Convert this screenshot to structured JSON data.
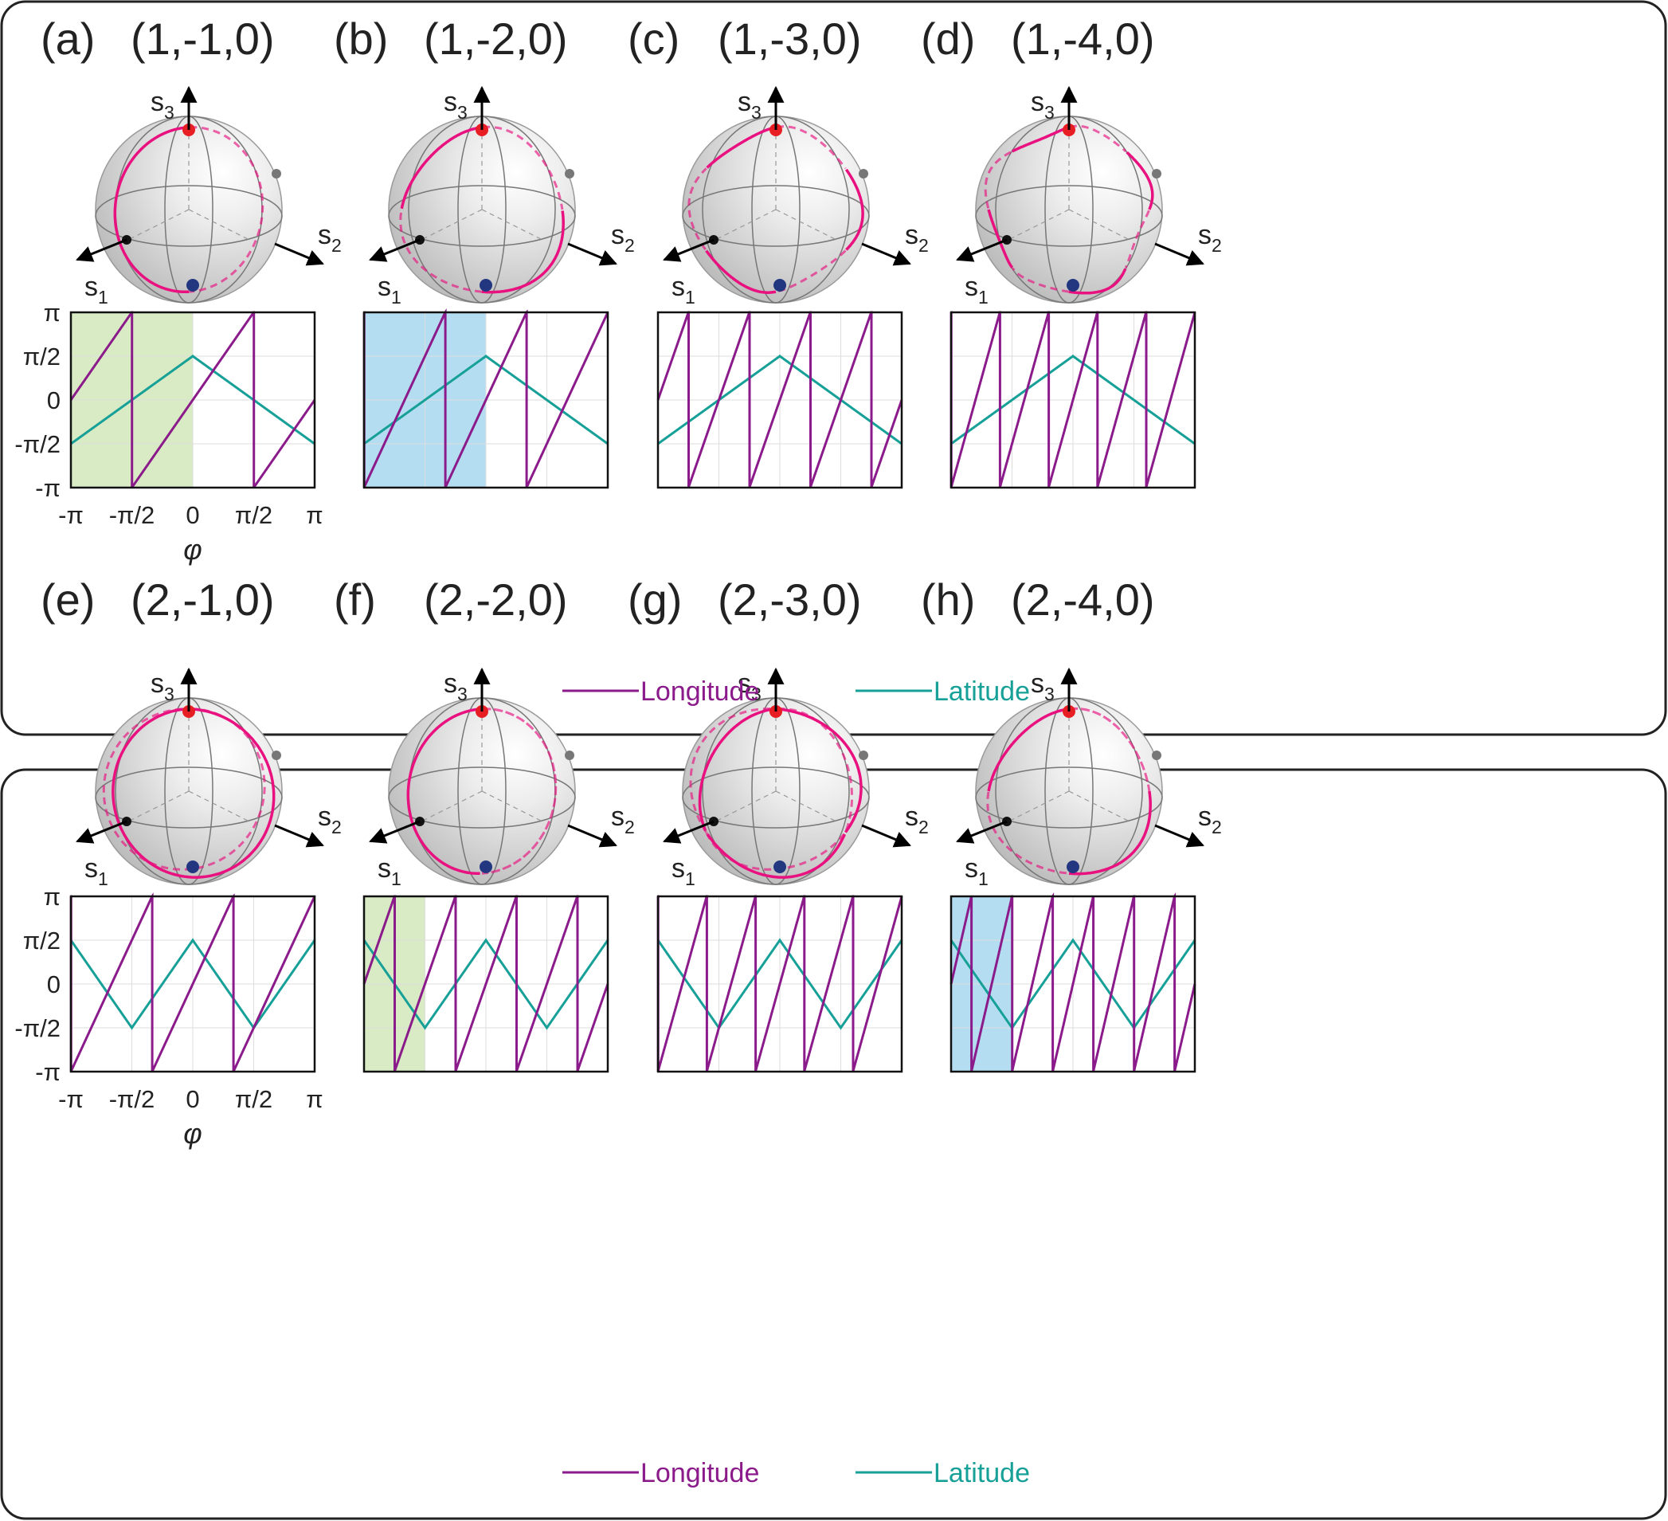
{
  "colors": {
    "longitude": "#8b1b8b",
    "latitude": "#17a097",
    "trajectory": "#e8117f",
    "north_pole": "#e81e25",
    "south_pole": "#233680",
    "green_shade": "#d9ebc4",
    "blue_shade": "#b4ddf2"
  },
  "axes": {
    "s1": "s",
    "s1_sub": "1",
    "s2": "s",
    "s2_sub": "2",
    "s3": "s",
    "s3_sub": "3"
  },
  "ticks": {
    "y": [
      "π",
      "π/2",
      "0",
      "-π/2",
      "-π"
    ],
    "x": [
      "-π",
      "-π/2",
      "0",
      "π/2",
      "π"
    ],
    "xlabel": "φ"
  },
  "legend": {
    "longitude": "Longitude",
    "latitude": "Latitude"
  },
  "groups": [
    {
      "panels": [
        {
          "label": "(a)",
          "title": "(1,-1,0)"
        },
        {
          "label": "(b)",
          "title": "(1,-2,0)"
        },
        {
          "label": "(c)",
          "title": "(1,-3,0)"
        },
        {
          "label": "(d)",
          "title": "(1,-4,0)"
        }
      ]
    },
    {
      "panels": [
        {
          "label": "(e)",
          "title": "(2,-1,0)"
        },
        {
          "label": "(f)",
          "title": "(2,-2,0)"
        },
        {
          "label": "(g)",
          "title": "(2,-3,0)"
        },
        {
          "label": "(h)",
          "title": "(2,-4,0)"
        }
      ]
    }
  ],
  "chart_data": [
    {
      "type": "line",
      "panel": "(a)",
      "x_range": [
        "-π",
        "π"
      ],
      "y_range": [
        "-π",
        "π"
      ],
      "p": 1,
      "q": -1,
      "shaded": "green",
      "shaded_x": [
        "-π",
        "0"
      ],
      "series": [
        {
          "name": "Longitude"
        },
        {
          "name": "Latitude"
        }
      ]
    },
    {
      "type": "line",
      "panel": "(b)",
      "x_range": [
        "-π",
        "π"
      ],
      "y_range": [
        "-π",
        "π"
      ],
      "p": 1,
      "q": -2,
      "shaded": "blue",
      "shaded_x": [
        "-π",
        "0"
      ],
      "series": [
        {
          "name": "Longitude"
        },
        {
          "name": "Latitude"
        }
      ]
    },
    {
      "type": "line",
      "panel": "(c)",
      "x_range": [
        "-π",
        "π"
      ],
      "y_range": [
        "-π",
        "π"
      ],
      "p": 1,
      "q": -3,
      "series": [
        {
          "name": "Longitude"
        },
        {
          "name": "Latitude"
        }
      ]
    },
    {
      "type": "line",
      "panel": "(d)",
      "x_range": [
        "-π",
        "π"
      ],
      "y_range": [
        "-π",
        "π"
      ],
      "p": 1,
      "q": -4,
      "series": [
        {
          "name": "Longitude"
        },
        {
          "name": "Latitude"
        }
      ]
    },
    {
      "type": "line",
      "panel": "(e)",
      "x_range": [
        "-π",
        "π"
      ],
      "y_range": [
        "-π",
        "π"
      ],
      "p": 2,
      "q": -1,
      "series": [
        {
          "name": "Longitude"
        },
        {
          "name": "Latitude"
        }
      ]
    },
    {
      "type": "line",
      "panel": "(f)",
      "x_range": [
        "-π",
        "π"
      ],
      "y_range": [
        "-π",
        "π"
      ],
      "p": 2,
      "q": -2,
      "shaded": "green",
      "shaded_x": [
        "-π",
        "-π/2"
      ],
      "series": [
        {
          "name": "Longitude"
        },
        {
          "name": "Latitude"
        }
      ]
    },
    {
      "type": "line",
      "panel": "(g)",
      "x_range": [
        "-π",
        "π"
      ],
      "y_range": [
        "-π",
        "π"
      ],
      "p": 2,
      "q": -3,
      "series": [
        {
          "name": "Longitude"
        },
        {
          "name": "Latitude"
        }
      ]
    },
    {
      "type": "line",
      "panel": "(h)",
      "x_range": [
        "-π",
        "π"
      ],
      "y_range": [
        "-π",
        "π"
      ],
      "p": 2,
      "q": -4,
      "shaded": "blue",
      "shaded_x": [
        "-π",
        "-π/2"
      ],
      "series": [
        {
          "name": "Longitude"
        },
        {
          "name": "Latitude"
        }
      ]
    }
  ]
}
